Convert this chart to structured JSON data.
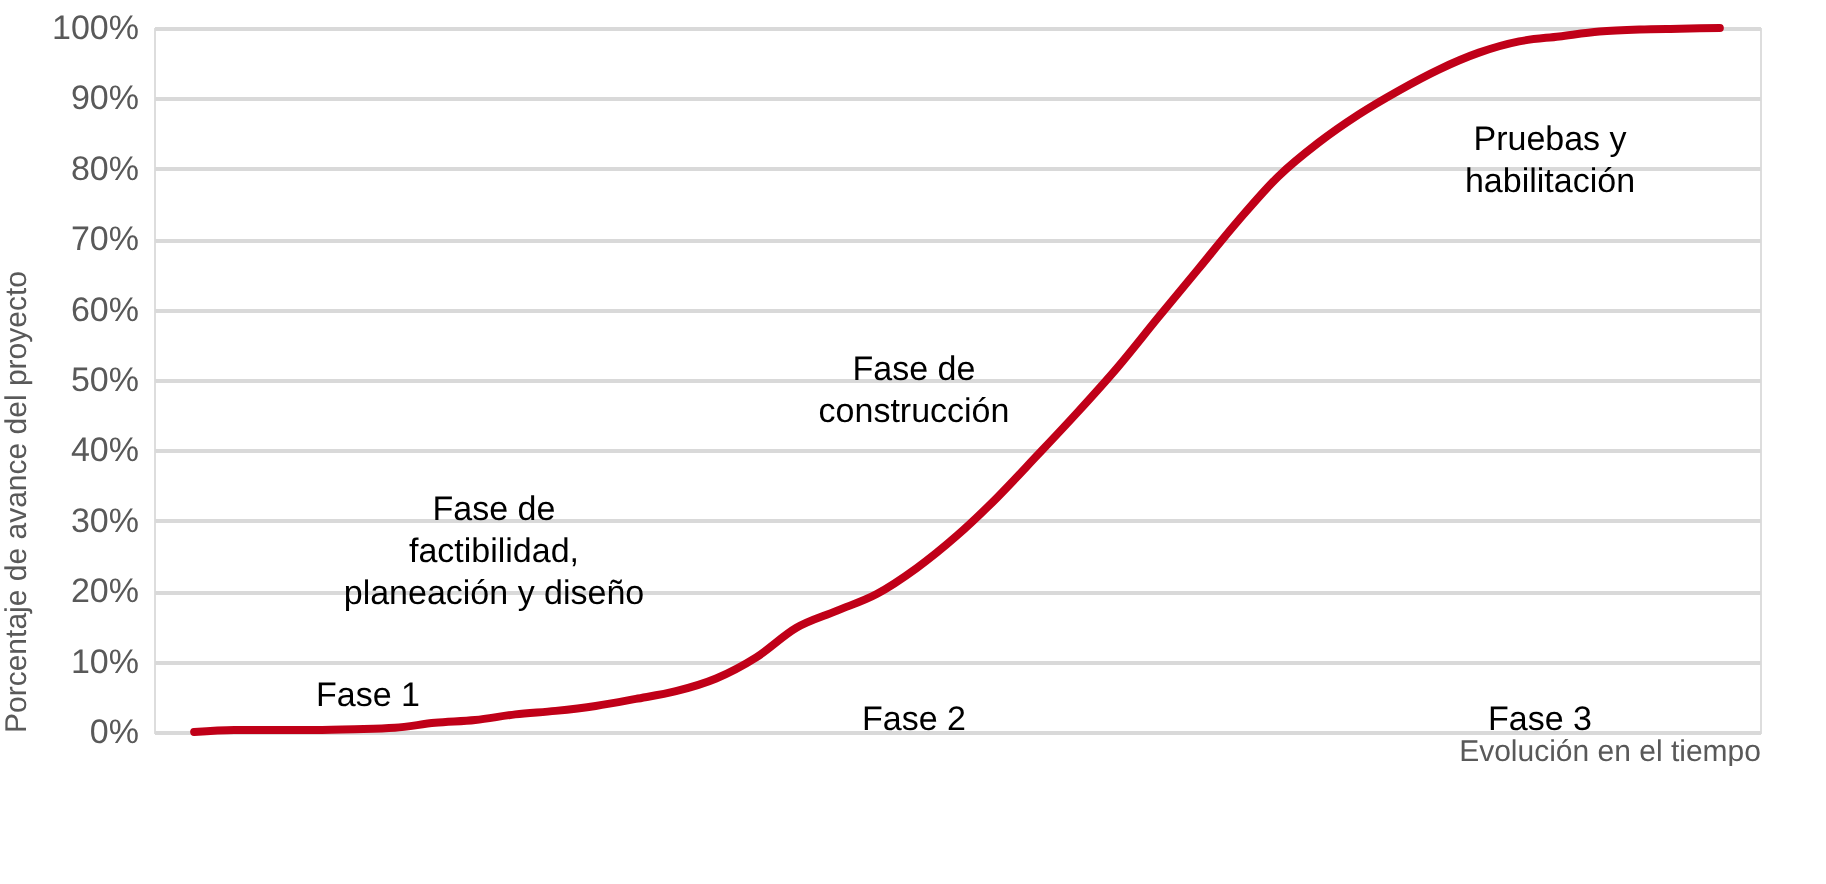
{
  "chart_data": {
    "type": "line",
    "xlabel": "Evolución en el tiempo",
    "ylabel": "Porcentaje de avance del proyecto",
    "categories": [
      null,
      null,
      null,
      null,
      null,
      null,
      null,
      null,
      null,
      null,
      null,
      null,
      null,
      null,
      null,
      null,
      null,
      null,
      null,
      null,
      null,
      null,
      null,
      null,
      null,
      null,
      null,
      null,
      null,
      null,
      null,
      null,
      null,
      null,
      null,
      null,
      null,
      null,
      null
    ],
    "series": [
      {
        "color": "#c00018",
        "values": [
          0,
          0.3,
          0.3,
          0.3,
          0.4,
          0.6,
          1.3,
          1.7,
          2.5,
          3.0,
          3.7,
          4.7,
          5.8,
          7.6,
          10.6,
          14.8,
          17.2,
          19.6,
          23.3,
          27.9,
          33.3,
          39.3,
          45.4,
          51.8,
          58.8,
          65.7,
          72.6,
          78.9,
          83.7,
          87.7,
          91.1,
          94.1,
          96.5,
          98.1,
          98.8,
          99.5,
          99.8,
          99.9,
          100
        ]
      }
    ],
    "ylim": [
      0,
      100
    ],
    "yticks": [
      {
        "value": 0,
        "label": "0%"
      },
      {
        "value": 10,
        "label": "10%"
      },
      {
        "value": 20,
        "label": "20%"
      },
      {
        "value": 30,
        "label": "30%"
      },
      {
        "value": 40,
        "label": "40%"
      },
      {
        "value": 50,
        "label": "50%"
      },
      {
        "value": 60,
        "label": "60%"
      },
      {
        "value": 70,
        "label": "70%"
      },
      {
        "value": 80,
        "label": "80%"
      },
      {
        "value": 90,
        "label": "90%"
      },
      {
        "value": 100,
        "label": "100%"
      }
    ],
    "grid": "y",
    "tick_labels": "y",
    "line_style": "solid",
    "annotations": [
      "Fase 1",
      "Fase de\nfactibilidad,\nplaneación y diseño",
      "Fase 2",
      "Fase de\nconstrucción",
      "Fase 3",
      "Pruebas y\nhabilitación"
    ]
  }
}
